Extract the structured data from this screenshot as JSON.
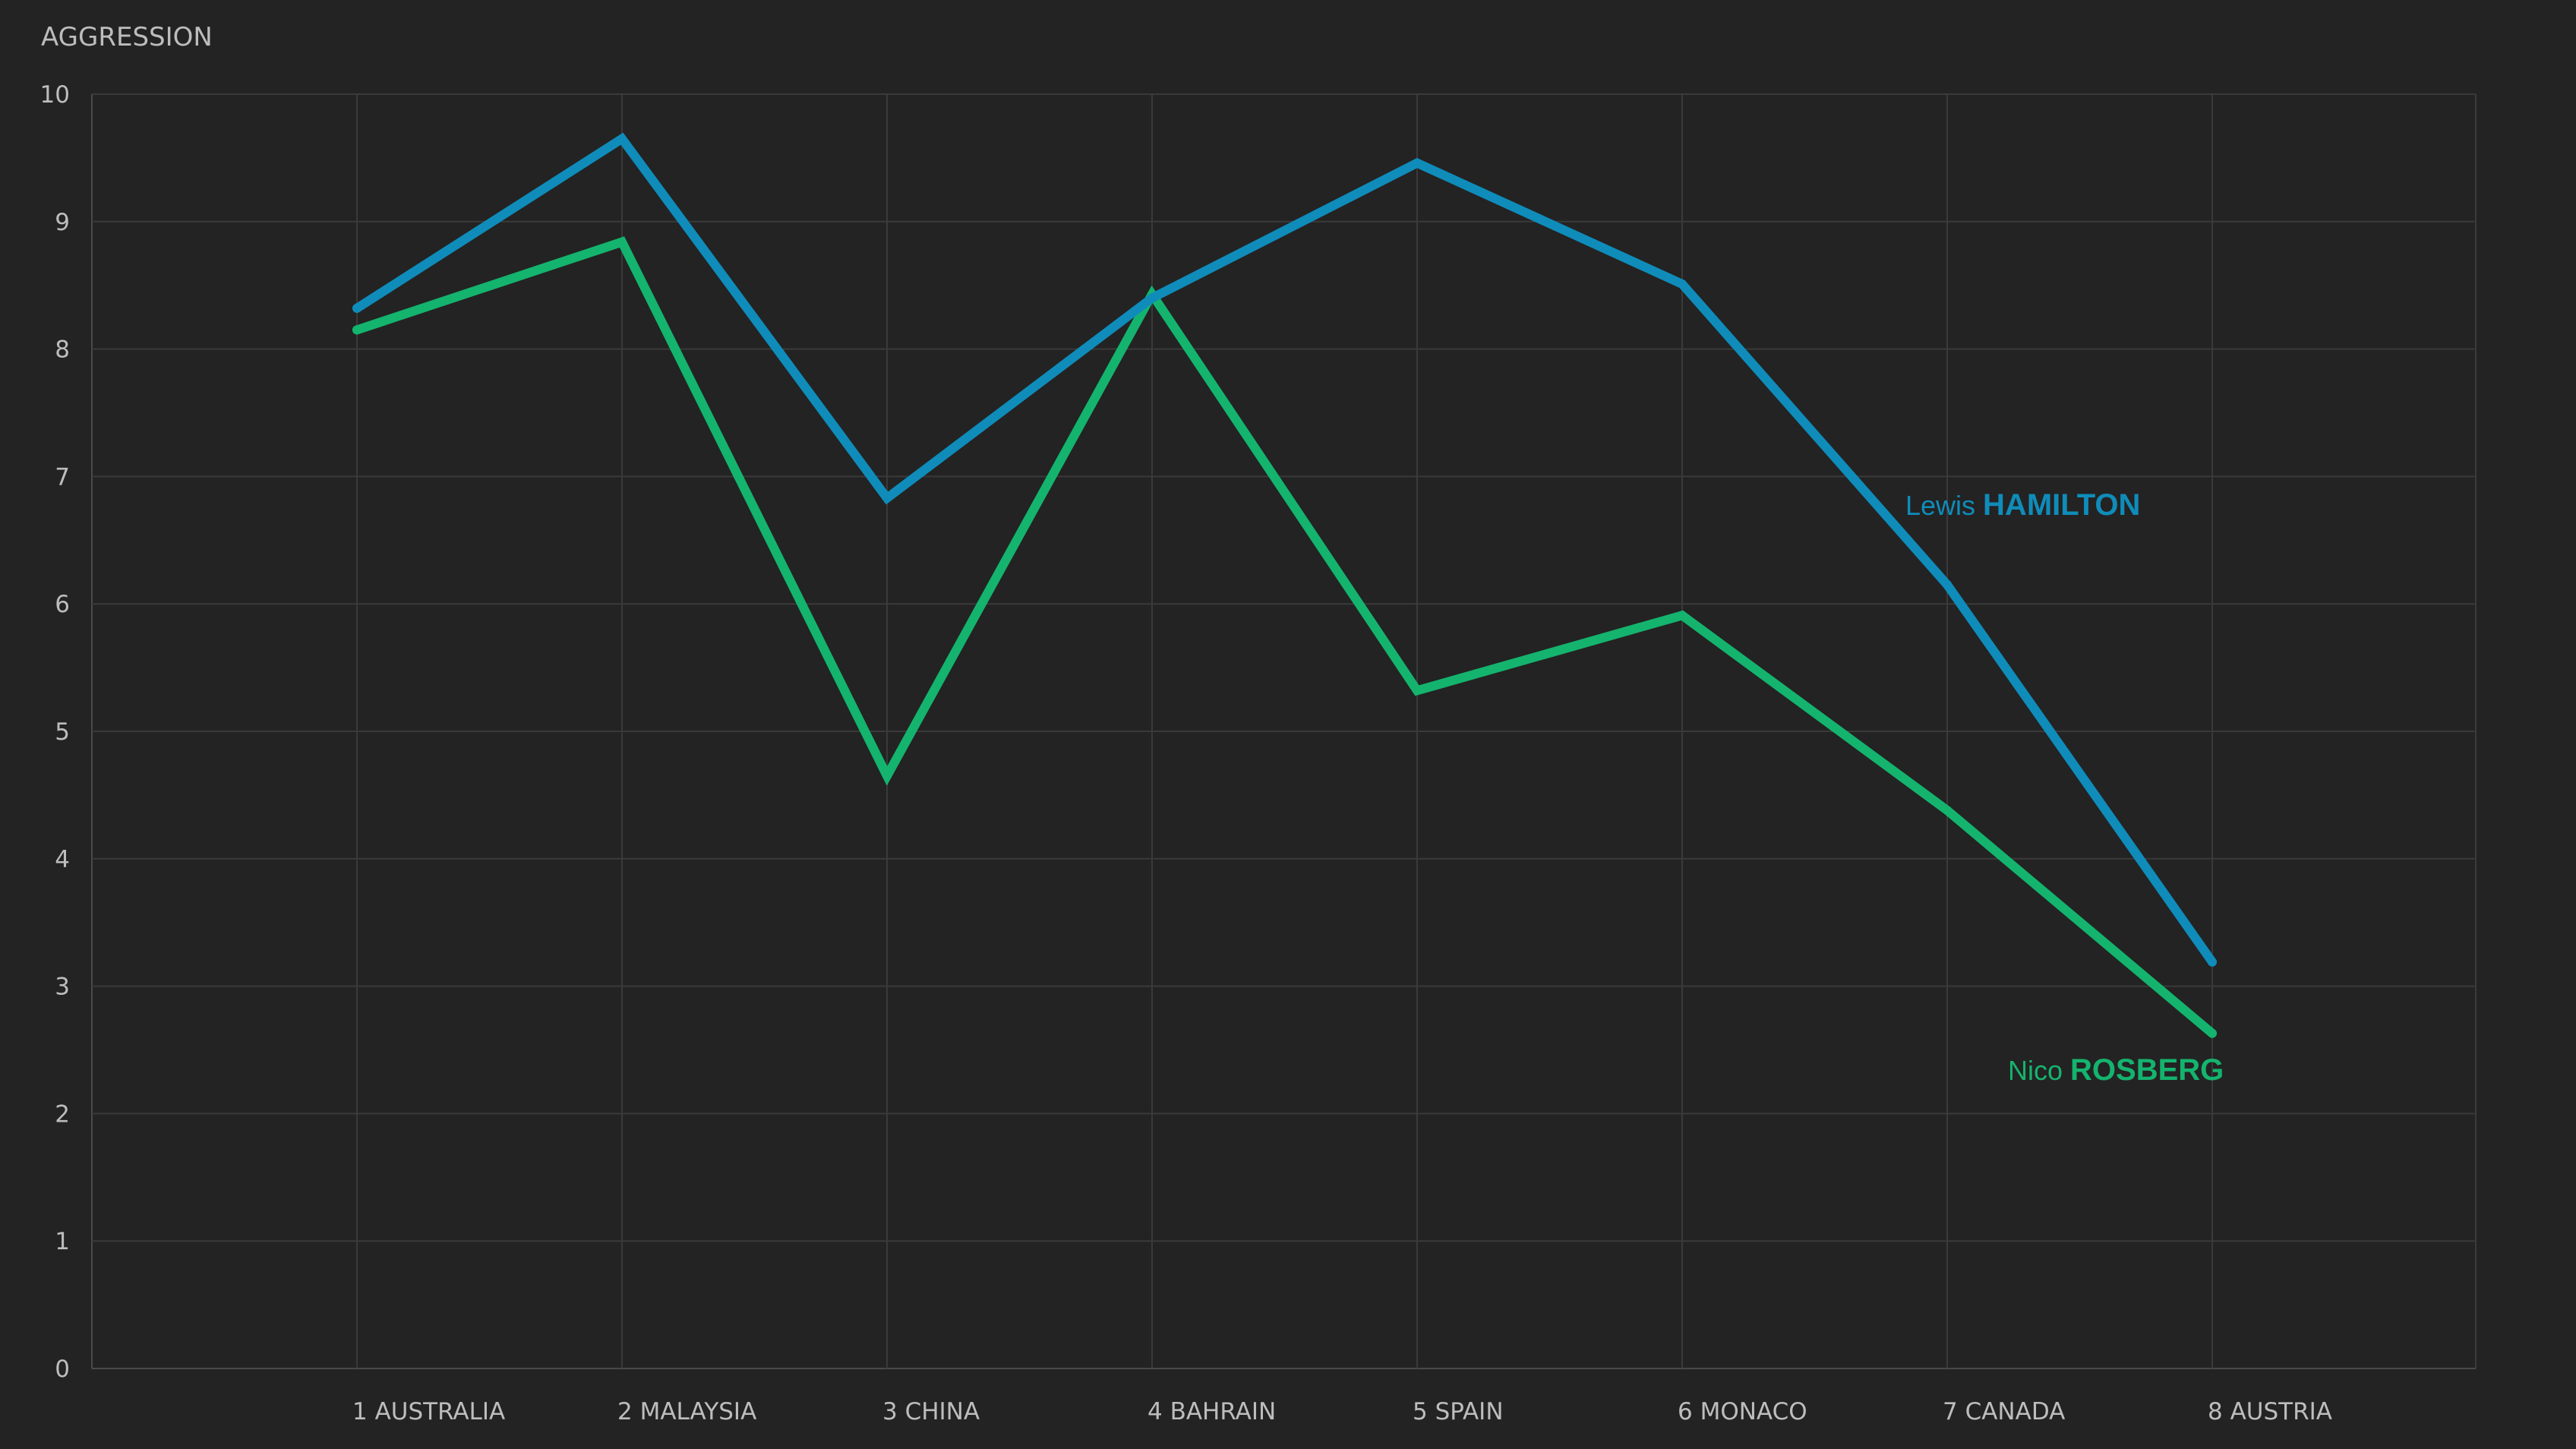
{
  "chart_data": {
    "type": "line",
    "ylabel": "AGGRESSION",
    "xlabel": "",
    "ylim": [
      0,
      10
    ],
    "yticks": [
      "0",
      "1",
      "2",
      "3",
      "4",
      "5",
      "6",
      "7",
      "8",
      "9",
      "10"
    ],
    "categories": [
      "1 AUSTRALIA",
      "2 MALAYSIA",
      "3 CHINA",
      "4 BAHRAIN",
      "5 SPAIN",
      "6 MONACO",
      "7 CANADA",
      "8 AUSTRIA"
    ],
    "grid": true,
    "series": [
      {
        "name": "Lewis HAMILTON",
        "first_name": "Lewis",
        "last_name": "HAMILTON",
        "color": "#0f8cba",
        "values": [
          8.32,
          9.65,
          6.83,
          8.4,
          9.46,
          8.51,
          6.15,
          3.19
        ]
      },
      {
        "name": "Nico ROSBERG",
        "first_name": "Nico",
        "last_name": "ROSBERG",
        "color": "#14b46e",
        "values": [
          8.15,
          8.84,
          4.65,
          8.43,
          5.32,
          5.91,
          4.38,
          2.63
        ]
      }
    ]
  }
}
